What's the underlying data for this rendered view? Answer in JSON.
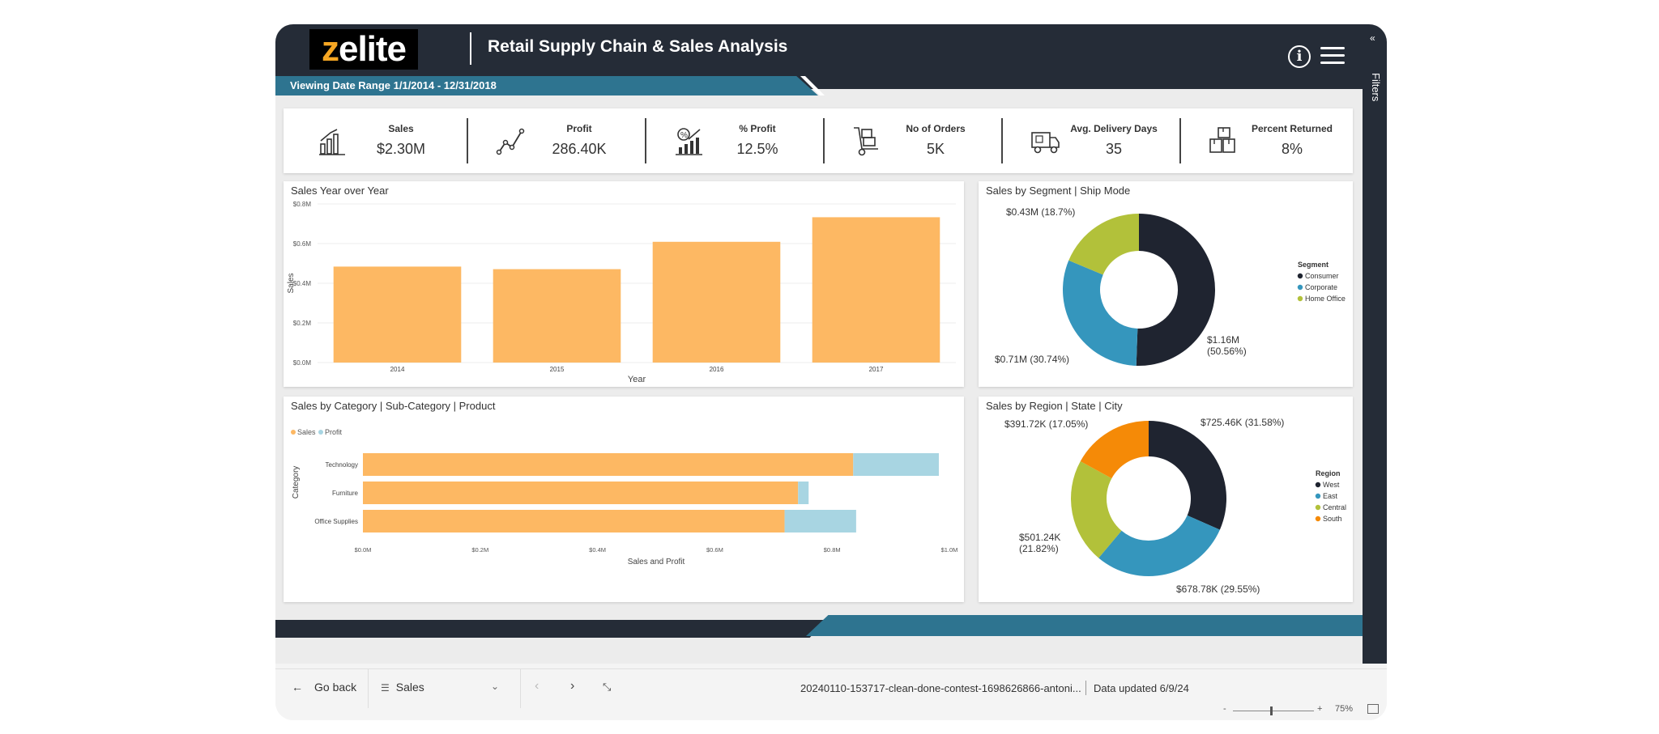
{
  "header": {
    "logo_text": "zelite",
    "title": "Retail Supply Chain & Sales Analysis",
    "info_icon": "info-icon",
    "menu_icon": "hamburger-menu-icon",
    "date_range": "Viewing Date Range 1/1/2014 - 12/31/2018"
  },
  "filters": {
    "label": "Filters",
    "chevron": "«"
  },
  "kpis": [
    {
      "label": "Sales",
      "value": "$2.30M",
      "icon": "bar-chart-icon"
    },
    {
      "label": "Profit",
      "value": "286.40K",
      "icon": "line-trend-icon"
    },
    {
      "label": "% Profit",
      "value": "12.5%",
      "icon": "percent-chart-icon"
    },
    {
      "label": "No of Orders",
      "value": "5K",
      "icon": "hand-truck-icon"
    },
    {
      "label": "Avg. Delivery Days",
      "value": "35",
      "icon": "delivery-truck-icon"
    },
    {
      "label": "Percent Returned",
      "value": "8%",
      "icon": "boxes-icon"
    }
  ],
  "colors": {
    "header": "#252c37",
    "teal": "#2e7490",
    "orange_bar": "#fdb863",
    "profit_bar": "#a8d5e2",
    "consumer": "#1f2430",
    "corporate": "#3596bd",
    "home_office": "#b2c13a",
    "south": "#f58a07"
  },
  "chart_data": [
    {
      "type": "bar",
      "title": "Sales Year over Year",
      "categories": [
        "2014",
        "2015",
        "2016",
        "2017"
      ],
      "values": [
        0.484,
        0.471,
        0.609,
        0.733
      ],
      "ylim": [
        0,
        0.8
      ],
      "yticks": [
        "$0.0M",
        "$0.2M",
        "$0.4M",
        "$0.6M",
        "$0.8M"
      ],
      "ytick_values": [
        0,
        0.2,
        0.4,
        0.6,
        0.8
      ],
      "xlabel": "Year",
      "ylabel": "Sales"
    },
    {
      "type": "pie",
      "title": "Sales by Segment | Ship Mode",
      "legend_title": "Segment",
      "legend_position": "right",
      "slices": [
        {
          "name": "Consumer",
          "value": 50.56,
          "label_line1": "$1.16M",
          "label_line2": "(50.56%)"
        },
        {
          "name": "Corporate",
          "value": 30.74,
          "label_line1": "$0.71M (30.74%)",
          "label_line2": ""
        },
        {
          "name": "Home Office",
          "value": 18.7,
          "label_line1": "$0.43M (18.7%)",
          "label_line2": ""
        }
      ]
    },
    {
      "type": "bar",
      "orientation": "horizontal-stacked",
      "title": "Sales by Category | Sub-Category | Product",
      "categories": [
        "Technology",
        "Furniture",
        "Office Supplies"
      ],
      "series": [
        {
          "name": "Sales",
          "values": [
            0.836,
            0.742,
            0.719
          ]
        },
        {
          "name": "Profit",
          "values": [
            0.146,
            0.018,
            0.122
          ]
        }
      ],
      "xlim": [
        0,
        1.0
      ],
      "xticks": [
        "$0.0M",
        "$0.2M",
        "$0.4M",
        "$0.6M",
        "$0.8M",
        "$1.0M"
      ],
      "xtick_values": [
        0,
        0.2,
        0.4,
        0.6,
        0.8,
        1.0
      ],
      "xlabel": "Sales and Profit",
      "ylabel": "Category",
      "legend_position": "top-left"
    },
    {
      "type": "pie",
      "title": "Sales by Region | State | City",
      "legend_title": "Region",
      "legend_position": "right",
      "slices": [
        {
          "name": "West",
          "value": 31.58,
          "label_line1": "$725.46K (31.58%)",
          "label_line2": ""
        },
        {
          "name": "East",
          "value": 29.55,
          "label_line1": "$678.78K (29.55%)",
          "label_line2": ""
        },
        {
          "name": "Central",
          "value": 21.82,
          "label_line1": "$501.24K",
          "label_line2": "(21.82%)"
        },
        {
          "name": "South",
          "value": 17.05,
          "label_line1": "$391.72K (17.05%)",
          "label_line2": ""
        }
      ]
    }
  ],
  "footer": {
    "go_back": "Go back",
    "page": "Sales",
    "file_name": "20240110-153717-clean-done-contest-1698626866-antoni...",
    "data_updated": "Data updated 6/9/24",
    "zoom": "75%",
    "zoom_minus": "-",
    "zoom_plus": "+"
  }
}
